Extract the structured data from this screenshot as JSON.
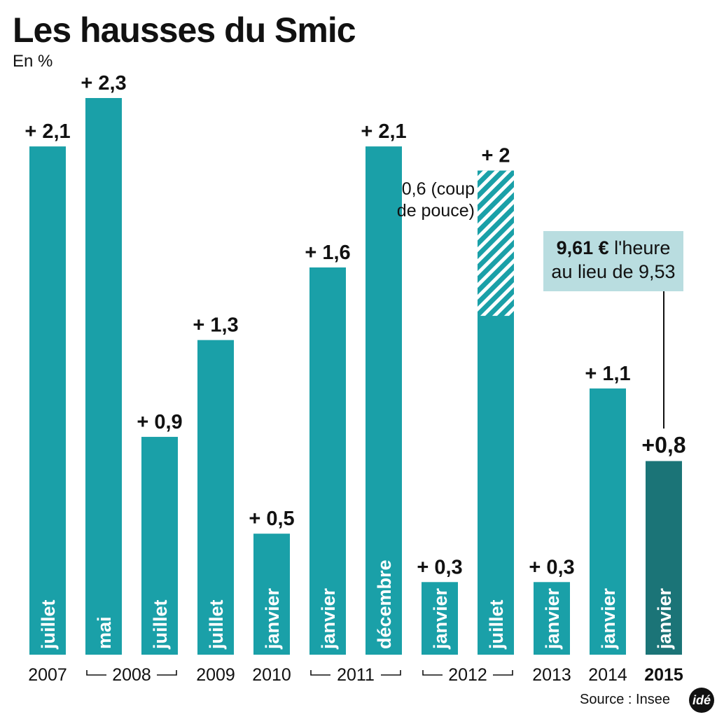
{
  "header": {
    "title": "Les hausses du Smic",
    "unit": "En %"
  },
  "annotation": {
    "coup_de_pouce": "0,6 (coup de pouce)",
    "callout_bold": "9,61 €",
    "callout_rest": " l'heure",
    "callout_line2": "au lieu de 9,53"
  },
  "footer": {
    "source": "Source : Insee",
    "logo": "idé"
  },
  "colors": {
    "bar": "#1aa0a8",
    "bar_highlight": "#1b7477",
    "hatch": "#ffffff",
    "callout_bg": "#b9dde0"
  },
  "chart_data": {
    "type": "bar",
    "title": "Les hausses du Smic",
    "ylabel": "En %",
    "ylim": [
      0,
      2.3
    ],
    "bars": [
      {
        "month": "juillet",
        "value": 2.1,
        "label": "+ 2,1"
      },
      {
        "month": "mai",
        "value": 2.3,
        "label": "+ 2,3"
      },
      {
        "month": "juillet",
        "value": 0.9,
        "label": "+ 0,9"
      },
      {
        "month": "juillet",
        "value": 1.3,
        "label": "+ 1,3"
      },
      {
        "month": "janvier",
        "value": 0.5,
        "label": "+ 0,5"
      },
      {
        "month": "janvier",
        "value": 1.6,
        "label": "+ 1,6"
      },
      {
        "month": "décembre",
        "value": 2.1,
        "label": "+ 2,1"
      },
      {
        "month": "janvier",
        "value": 0.3,
        "label": "+ 0,3"
      },
      {
        "month": "juillet",
        "value": 2.0,
        "label": "+ 2",
        "coup_de_pouce": 0.6
      },
      {
        "month": "janvier",
        "value": 0.3,
        "label": "+ 0,3"
      },
      {
        "month": "janvier",
        "value": 1.1,
        "label": "+ 1,1"
      },
      {
        "month": "janvier",
        "value": 0.8,
        "label": "+0,8",
        "highlight": true
      }
    ],
    "years": [
      {
        "label": "2007",
        "from": 0,
        "to": 0
      },
      {
        "label": "2008",
        "from": 1,
        "to": 2
      },
      {
        "label": "2009",
        "from": 3,
        "to": 3
      },
      {
        "label": "2010",
        "from": 4,
        "to": 4
      },
      {
        "label": "2011",
        "from": 5,
        "to": 6
      },
      {
        "label": "2012",
        "from": 7,
        "to": 8
      },
      {
        "label": "2013",
        "from": 9,
        "to": 9
      },
      {
        "label": "2014",
        "from": 10,
        "to": 10
      },
      {
        "label": "2015",
        "from": 11,
        "to": 11,
        "bold": true
      }
    ]
  }
}
